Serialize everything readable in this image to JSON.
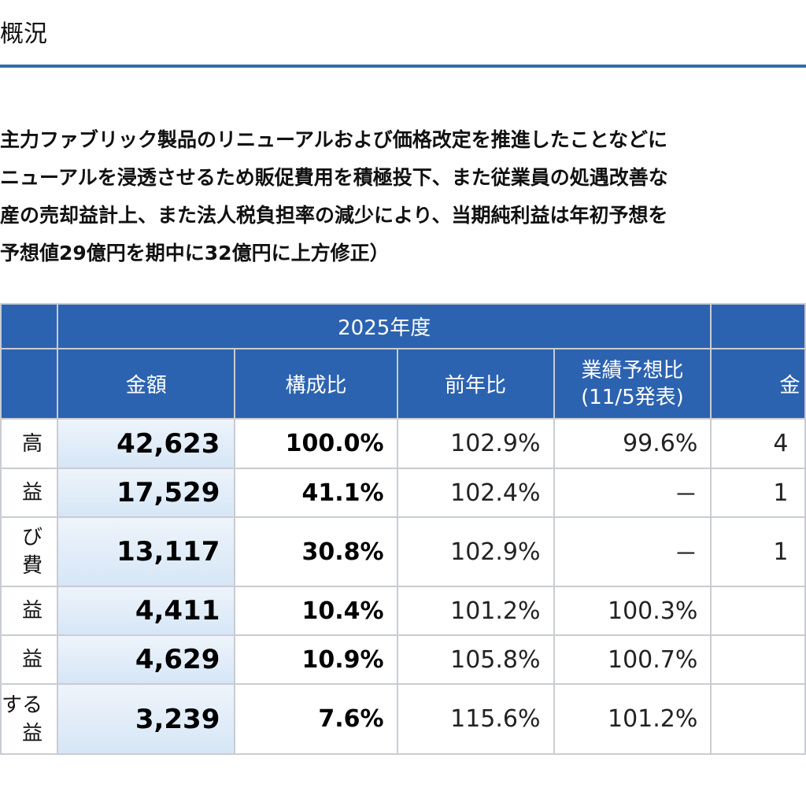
{
  "title": "概況",
  "summary_lines": [
    "主力ファブリック製品のリニューアルおよび価格改定を推進したことなどに",
    "ニューアルを浸透させるため販促費用を積極投下、また従業員の処遇改善な",
    "産の売却益計上、また法人税負担率の減少により、当期純利益は年初予想を",
    "予想値29億円を期中に32億円に上方修正）"
  ],
  "table": {
    "year_header": "2025年度",
    "columns": [
      "金額",
      "構成比",
      "前年比",
      "業績予想比",
      "(11/5発表)",
      "金"
    ],
    "rows": [
      {
        "label": [
          "高"
        ],
        "amount": "42,623",
        "ratio": "100.0%",
        "yoy": "102.9%",
        "forecast": "99.6%",
        "next": "4"
      },
      {
        "label": [
          "益"
        ],
        "amount": "17,529",
        "ratio": "41.1%",
        "yoy": "102.4%",
        "forecast": "－",
        "next": "1"
      },
      {
        "label": [
          "び",
          "費"
        ],
        "amount": "13,117",
        "ratio": "30.8%",
        "yoy": "102.9%",
        "forecast": "－",
        "next": "1"
      },
      {
        "label": [
          "益"
        ],
        "amount": "4,411",
        "ratio": "10.4%",
        "yoy": "101.2%",
        "forecast": "100.3%",
        "next": ""
      },
      {
        "label": [
          "益"
        ],
        "amount": "4,629",
        "ratio": "10.9%",
        "yoy": "105.8%",
        "forecast": "100.7%",
        "next": ""
      },
      {
        "label": [
          "する",
          "益"
        ],
        "amount": "3,239",
        "ratio": "7.6%",
        "yoy": "115.6%",
        "forecast": "101.2%",
        "next": ""
      }
    ]
  }
}
